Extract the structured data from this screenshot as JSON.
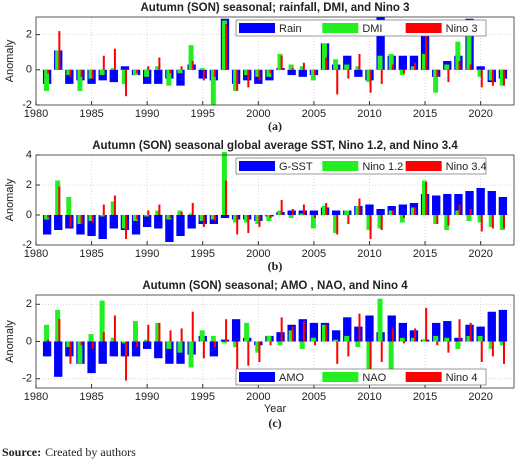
{
  "chart_data": [
    {
      "type": "bar",
      "title": "Autumn (SON) seasonal;  rainfall,  DMI, and Nino 3",
      "ylabel": "Anomaly",
      "panel_label": "(a)",
      "legend": "upper right",
      "grid": true,
      "xlim": [
        1980,
        2023
      ],
      "xticks": [
        1980,
        1985,
        1990,
        1995,
        2000,
        2005,
        2010,
        2015,
        2020
      ],
      "ylim": [
        -2,
        3
      ],
      "yticks": [
        -2,
        0,
        2
      ],
      "x": [
        1981,
        1982,
        1983,
        1984,
        1985,
        1986,
        1987,
        1988,
        1989,
        1990,
        1991,
        1992,
        1993,
        1994,
        1995,
        1996,
        1997,
        1998,
        1999,
        2000,
        2001,
        2002,
        2003,
        2004,
        2005,
        2006,
        2007,
        2008,
        2009,
        2010,
        2011,
        2012,
        2013,
        2014,
        2015,
        2016,
        2017,
        2018,
        2019,
        2020,
        2021,
        2022
      ],
      "series": [
        {
          "name": "Rain",
          "color": "#0000ff",
          "values": [
            -0.8,
            1.1,
            -0.8,
            -0.6,
            -0.8,
            -0.6,
            -0.7,
            0.2,
            -0.3,
            -0.8,
            -0.8,
            -0.5,
            -0.9,
            0.3,
            -0.5,
            -0.6,
            2.9,
            -0.8,
            -0.6,
            -0.8,
            -0.6,
            0.1,
            -0.3,
            -0.4,
            -0.3,
            1.5,
            0.3,
            0.8,
            -0.4,
            -0.6,
            3.0,
            0.8,
            0.8,
            0.8,
            2.0,
            -0.4,
            0.5,
            0.8,
            2.9,
            0.2,
            -0.7,
            -0.5
          ]
        },
        {
          "name": "DMI",
          "color": "#22ee22",
          "values": [
            -1.2,
            1.1,
            -0.3,
            -1.2,
            -0.5,
            -0.3,
            0.1,
            -0.8,
            -0.3,
            -0.4,
            0.2,
            -0.9,
            -0.2,
            1.4,
            0.1,
            -2.0,
            2.8,
            -1.2,
            -0.3,
            -0.4,
            -0.4,
            0.9,
            0.3,
            0.2,
            -0.6,
            1.5,
            0.6,
            0.3,
            0.2,
            -0.7,
            0.8,
            0.9,
            -0.3,
            0.2,
            0.9,
            -1.3,
            0.3,
            1.6,
            2.2,
            -0.4,
            -0.6,
            -0.9
          ]
        },
        {
          "name": "Nino 3",
          "color": "#ff0000",
          "values": [
            -0.2,
            2.2,
            -0.4,
            -0.4,
            -0.5,
            0.8,
            1.2,
            -1.5,
            -0.2,
            0.2,
            0.7,
            -0.2,
            0.2,
            0.5,
            -0.6,
            -0.4,
            2.6,
            -1.2,
            -1.0,
            -0.6,
            -0.2,
            0.8,
            0.1,
            0.4,
            -0.3,
            0.7,
            -1.4,
            -0.5,
            0.9,
            -1.3,
            -0.8,
            0.3,
            -0.2,
            0.4,
            2.3,
            -0.4,
            -0.7,
            0.5,
            0.3,
            -1.0,
            -0.9,
            -0.9
          ]
        }
      ]
    },
    {
      "type": "bar",
      "title": "Autumn (SON) seasonal  global average SST, Nino 1.2, and Nino 3.4",
      "ylabel": "Anomaly",
      "panel_label": "(b)",
      "legend": "upper right",
      "grid": true,
      "xlim": [
        1980,
        2023
      ],
      "xticks": [
        1980,
        1985,
        1990,
        1995,
        2000,
        2005,
        2010,
        2015,
        2020
      ],
      "ylim": [
        -2,
        4
      ],
      "yticks": [
        -2,
        0,
        2,
        4
      ],
      "x": [
        1981,
        1982,
        1983,
        1984,
        1985,
        1986,
        1987,
        1988,
        1989,
        1990,
        1991,
        1992,
        1993,
        1994,
        1995,
        1996,
        1997,
        1998,
        1999,
        2000,
        2001,
        2002,
        2003,
        2004,
        2005,
        2006,
        2007,
        2008,
        2009,
        2010,
        2011,
        2012,
        2013,
        2014,
        2015,
        2016,
        2017,
        2018,
        2019,
        2020,
        2021,
        2022
      ],
      "series": [
        {
          "name": "G-SST",
          "color": "#0000ff",
          "values": [
            -1.3,
            -1.0,
            -0.9,
            -1.3,
            -1.4,
            -1.6,
            -0.9,
            -1.0,
            -1.3,
            -0.8,
            -0.9,
            -1.8,
            -1.4,
            -0.9,
            -0.6,
            -0.6,
            -0.2,
            -0.3,
            -0.3,
            -0.4,
            -0.1,
            0.2,
            0.3,
            0.3,
            0.3,
            0.5,
            0.3,
            0.3,
            0.6,
            0.7,
            0.4,
            0.6,
            0.7,
            0.8,
            1.4,
            1.3,
            1.4,
            1.4,
            1.6,
            1.8,
            1.6,
            1.2
          ]
        },
        {
          "name": "Nino 1.2",
          "color": "#22ee22",
          "values": [
            -0.3,
            2.3,
            1.2,
            -0.6,
            -0.4,
            -0.1,
            0.9,
            -0.9,
            -0.4,
            -0.1,
            0.3,
            -0.3,
            0.3,
            0.1,
            -0.4,
            -0.3,
            4.2,
            -0.5,
            -0.5,
            -0.6,
            -0.4,
            0.3,
            -0.2,
            0.1,
            -0.9,
            0.6,
            -1.2,
            0.3,
            0.6,
            -1.0,
            -0.9,
            0.3,
            -0.5,
            0.5,
            2.3,
            -0.6,
            -1.0,
            0.3,
            -0.4,
            -0.5,
            -0.8,
            -1.0
          ]
        },
        {
          "name": "Nino 3.4",
          "color": "#ff0000",
          "values": [
            -0.2,
            1.9,
            -0.8,
            -0.6,
            -0.5,
            0.7,
            1.3,
            -1.6,
            -0.3,
            0.3,
            0.7,
            -0.2,
            0.2,
            0.8,
            -0.8,
            -0.4,
            2.3,
            -1.3,
            -1.2,
            -0.8,
            -0.2,
            1.0,
            0.4,
            0.7,
            -0.2,
            0.8,
            -1.3,
            -0.6,
            1.1,
            -1.6,
            -1.0,
            0.3,
            -0.2,
            0.5,
            2.2,
            -0.6,
            -0.7,
            0.7,
            0.4,
            -1.1,
            -0.9,
            -0.9
          ]
        }
      ]
    },
    {
      "type": "bar",
      "title": "Autumn (SON) seasonal;  AMO , NAO, and Nino 4",
      "ylabel": "Anomaly",
      "xlabel": "Year",
      "panel_label": "(c)",
      "legend": "lower right",
      "grid": true,
      "xlim": [
        1980,
        2023
      ],
      "xticks": [
        1980,
        1985,
        1990,
        1995,
        2000,
        2005,
        2010,
        2015,
        2020
      ],
      "ylim": [
        -2.5,
        2.5
      ],
      "yticks": [
        -2,
        0,
        2
      ],
      "x": [
        1981,
        1982,
        1983,
        1984,
        1985,
        1986,
        1987,
        1988,
        1989,
        1990,
        1991,
        1992,
        1993,
        1994,
        1995,
        1996,
        1997,
        1998,
        1999,
        2000,
        2001,
        2002,
        2003,
        2004,
        2005,
        2006,
        2007,
        2008,
        2009,
        2010,
        2011,
        2012,
        2013,
        2014,
        2015,
        2016,
        2017,
        2018,
        2019,
        2020,
        2021,
        2022
      ],
      "series": [
        {
          "name": "AMO",
          "color": "#0000ff",
          "values": [
            -0.8,
            -1.9,
            -0.8,
            -1.2,
            -1.7,
            -1.2,
            -0.8,
            -0.8,
            -0.8,
            -0.4,
            -0.9,
            -1.2,
            -1.2,
            -0.7,
            0.3,
            -0.8,
            0.1,
            1.2,
            0.2,
            -0.2,
            0.3,
            0.5,
            0.9,
            1.2,
            1.0,
            1.0,
            0.6,
            1.3,
            0.8,
            1.4,
            0.5,
            1.4,
            1.0,
            0.6,
            0.1,
            1.0,
            1.1,
            0.2,
            0.9,
            0.8,
            1.6,
            1.7
          ]
        },
        {
          "name": "NAO",
          "color": "#22ee22",
          "values": [
            0.9,
            1.7,
            -0.3,
            -1.2,
            0.4,
            2.2,
            0.2,
            -0.1,
            1.1,
            0.1,
            1.0,
            -0.4,
            -0.6,
            -1.4,
            0.6,
            0.3,
            -0.1,
            -0.3,
            1.0,
            -0.6,
            0.3,
            -0.2,
            0.6,
            -0.4,
            0.2,
            0.9,
            0.1,
            0.3,
            -0.3,
            -1.6,
            2.3,
            -1.7,
            0.2,
            0.2,
            0.1,
            0.3,
            0.2,
            -0.4,
            0.3,
            0.3,
            -0.4,
            -0.2
          ]
        },
        {
          "name": "Nino 4",
          "color": "#ff0000",
          "values": [
            0.1,
            1.2,
            -1.2,
            -0.2,
            -0.4,
            0.5,
            1.4,
            -2.1,
            -0.3,
            0.9,
            1.0,
            0.6,
            0.7,
            1.6,
            -0.9,
            -0.3,
            1.2,
            -1.6,
            -1.3,
            -1.1,
            -0.2,
            1.3,
            0.8,
            1.1,
            -0.2,
            0.9,
            -1.2,
            -0.8,
            1.5,
            -1.8,
            -1.1,
            0.7,
            -0.1,
            0.7,
            1.8,
            -0.2,
            -0.6,
            1.2,
            1.0,
            -1.1,
            -0.8,
            -1.2
          ]
        }
      ]
    }
  ],
  "source": {
    "label": "Source:",
    "text": "Created by authors"
  }
}
